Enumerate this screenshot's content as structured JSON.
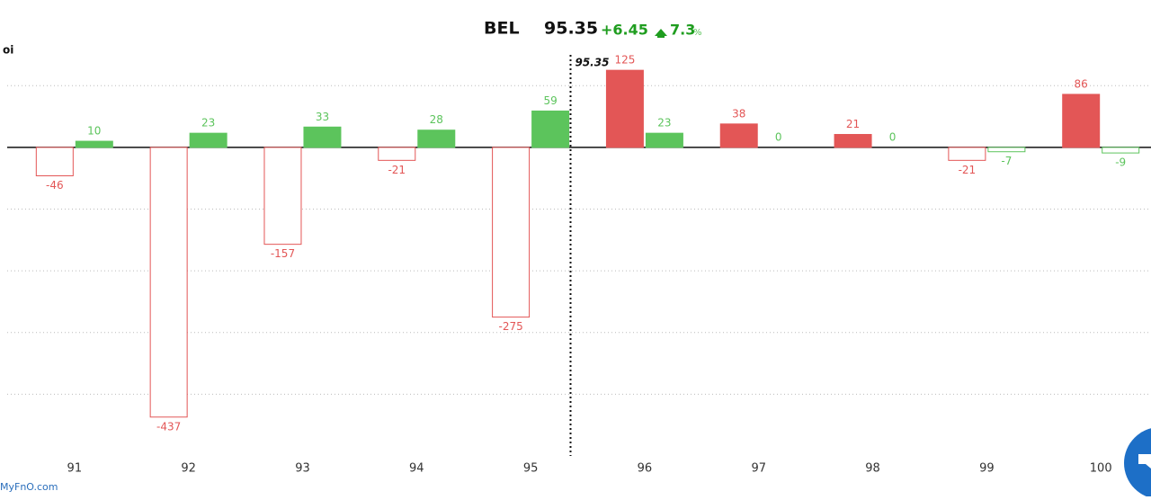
{
  "header": {
    "symbol": "BEL",
    "price": "95.35",
    "change": "+6.45",
    "change_pct": "7.3",
    "pct_sign": "%"
  },
  "chart_data": {
    "type": "bar",
    "ylabel": "oi",
    "x": [
      91,
      92,
      93,
      94,
      95,
      96,
      97,
      98,
      99,
      100
    ],
    "xlim": [
      90.41,
      100.44
    ],
    "ylim": [
      -500,
      150
    ],
    "yticks": [
      -400,
      -300,
      -200,
      -100,
      0,
      100
    ],
    "grid": true,
    "spot": 95.35,
    "series": [
      {
        "color": "#e35656",
        "values": [
          -46,
          -437,
          -157,
          -21,
          -275,
          125,
          38,
          21,
          -21,
          86
        ]
      },
      {
        "color": "#5cc45c",
        "values": [
          10,
          23,
          33,
          28,
          59,
          23,
          0,
          0,
          -7,
          -9
        ]
      }
    ]
  },
  "footer": {
    "brand": "MyFnO.com"
  }
}
